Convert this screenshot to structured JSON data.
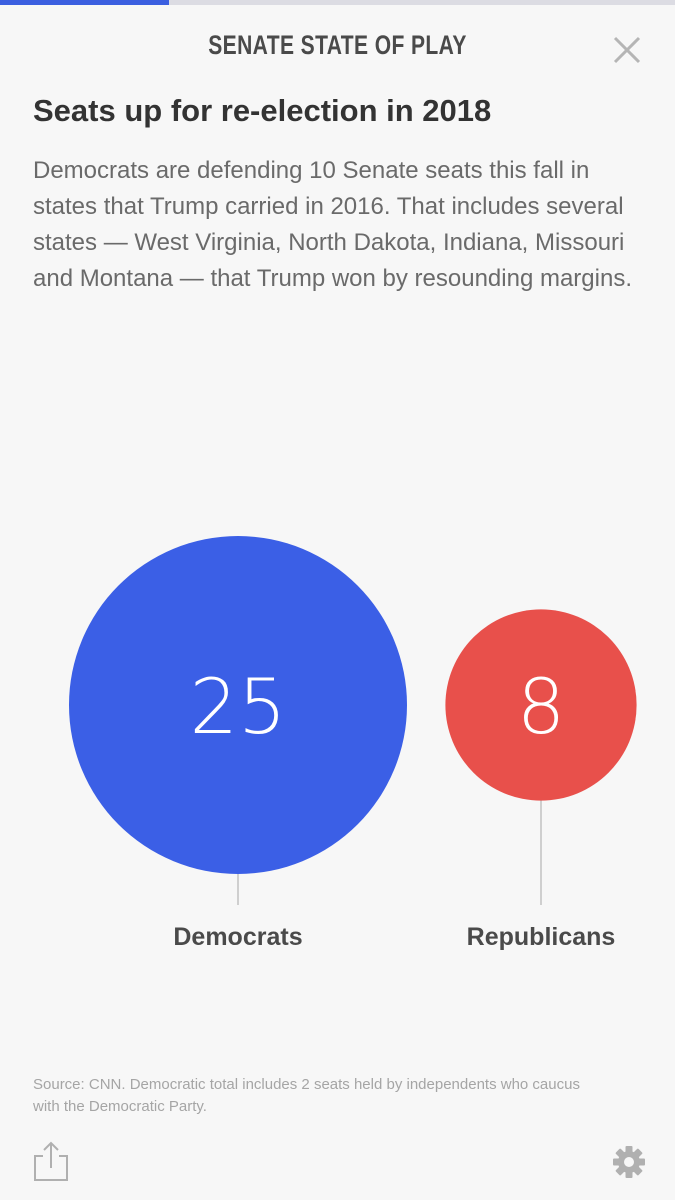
{
  "header": {
    "title": "SENATE STATE OF PLAY",
    "progress_fraction": 0.25
  },
  "article": {
    "headline": "Seats up for re-election in 2018",
    "dek": "Democrats are defending 10 Senate seats this fall in states that Trump carried in 2016. That includes several states — West Virginia, North Dakota, Indiana, Missouri and Montana — that Trump won by resounding margins."
  },
  "chart_data": {
    "type": "bubble",
    "categories": [
      "Democrats",
      "Republicans"
    ],
    "values": [
      25,
      8
    ],
    "value_labels": [
      "25",
      "8"
    ],
    "colors": [
      "#3b5fe6",
      "#e8504b"
    ],
    "title": "",
    "xlabel": "",
    "ylabel": ""
  },
  "footer": {
    "source": "Source: CNN. Democratic total includes 2 seats held by independents who caucus with the Democratic Party.",
    "share_icon": "share-icon",
    "settings_icon": "gear-icon"
  },
  "icons": {
    "close": "close-icon"
  }
}
